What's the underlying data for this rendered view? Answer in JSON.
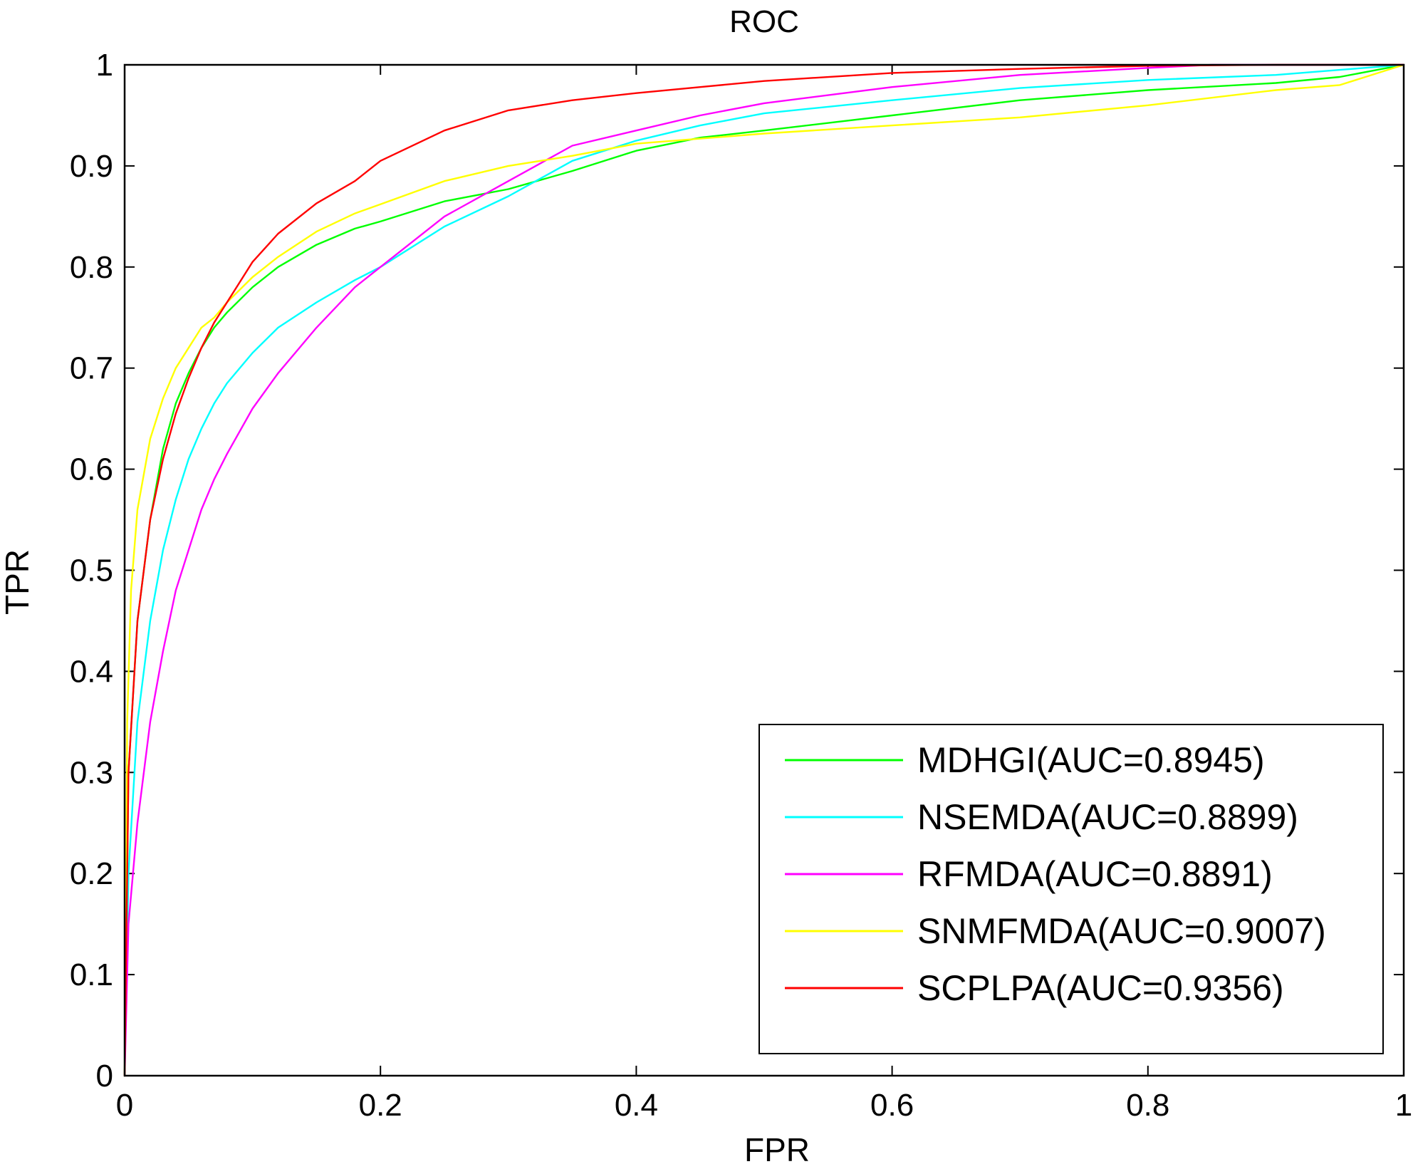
{
  "chart_data": {
    "type": "line",
    "title": "ROC",
    "xlabel": "FPR",
    "ylabel": "TPR",
    "xlim": [
      0,
      1
    ],
    "ylim": [
      0,
      1
    ],
    "xticks": [
      "0",
      "0.2",
      "0.4",
      "0.6",
      "0.8",
      "1"
    ],
    "yticks": [
      "0",
      "0.1",
      "0.2",
      "0.3",
      "0.4",
      "0.5",
      "0.6",
      "0.7",
      "0.8",
      "0.9",
      "1"
    ],
    "grid": false,
    "legend_position": "bottom-right",
    "series": [
      {
        "name": "MDHGI(AUC=0.8945)",
        "color": "#00ff00",
        "x": [
          0,
          0.003,
          0.01,
          0.02,
          0.03,
          0.04,
          0.05,
          0.06,
          0.07,
          0.08,
          0.1,
          0.12,
          0.15,
          0.18,
          0.2,
          0.25,
          0.3,
          0.35,
          0.4,
          0.45,
          0.5,
          0.6,
          0.7,
          0.8,
          0.9,
          0.95,
          1
        ],
        "y": [
          0,
          0.3,
          0.45,
          0.55,
          0.62,
          0.665,
          0.695,
          0.72,
          0.74,
          0.755,
          0.78,
          0.8,
          0.822,
          0.838,
          0.845,
          0.865,
          0.877,
          0.895,
          0.915,
          0.928,
          0.935,
          0.95,
          0.965,
          0.975,
          0.982,
          0.988,
          1
        ]
      },
      {
        "name": "NSEMDA(AUC=0.8899)",
        "color": "#00ffff",
        "x": [
          0,
          0.003,
          0.01,
          0.02,
          0.03,
          0.04,
          0.05,
          0.06,
          0.07,
          0.08,
          0.1,
          0.12,
          0.15,
          0.18,
          0.2,
          0.25,
          0.3,
          0.35,
          0.4,
          0.45,
          0.5,
          0.6,
          0.7,
          0.8,
          0.9,
          0.95,
          1
        ],
        "y": [
          0,
          0.2,
          0.35,
          0.45,
          0.52,
          0.57,
          0.61,
          0.64,
          0.665,
          0.685,
          0.715,
          0.74,
          0.765,
          0.787,
          0.8,
          0.84,
          0.87,
          0.905,
          0.925,
          0.94,
          0.952,
          0.965,
          0.977,
          0.985,
          0.99,
          0.995,
          1
        ]
      },
      {
        "name": "RFMDA(AUC=0.8891)",
        "color": "#ff00ff",
        "x": [
          0,
          0.003,
          0.01,
          0.02,
          0.03,
          0.04,
          0.05,
          0.06,
          0.07,
          0.08,
          0.1,
          0.12,
          0.15,
          0.18,
          0.2,
          0.25,
          0.3,
          0.35,
          0.4,
          0.45,
          0.5,
          0.6,
          0.7,
          0.8,
          0.85,
          0.9,
          1
        ],
        "y": [
          0,
          0.15,
          0.25,
          0.35,
          0.42,
          0.48,
          0.52,
          0.56,
          0.59,
          0.615,
          0.66,
          0.695,
          0.74,
          0.78,
          0.8,
          0.85,
          0.885,
          0.92,
          0.935,
          0.95,
          0.962,
          0.978,
          0.99,
          0.997,
          1.0,
          1.0,
          1
        ]
      },
      {
        "name": "SNMFMDA(AUC=0.9007)",
        "color": "#ffff00",
        "x": [
          0,
          0.002,
          0.005,
          0.01,
          0.02,
          0.03,
          0.04,
          0.05,
          0.06,
          0.07,
          0.08,
          0.1,
          0.12,
          0.15,
          0.18,
          0.2,
          0.25,
          0.3,
          0.35,
          0.4,
          0.5,
          0.6,
          0.7,
          0.8,
          0.9,
          0.95,
          1
        ],
        "y": [
          0,
          0.35,
          0.48,
          0.56,
          0.63,
          0.67,
          0.7,
          0.72,
          0.74,
          0.75,
          0.765,
          0.79,
          0.81,
          0.835,
          0.853,
          0.862,
          0.885,
          0.9,
          0.91,
          0.922,
          0.932,
          0.94,
          0.948,
          0.96,
          0.975,
          0.98,
          1
        ]
      },
      {
        "name": "SCPLPA(AUC=0.9356)",
        "color": "#ff0000",
        "x": [
          0,
          0.003,
          0.01,
          0.02,
          0.03,
          0.04,
          0.05,
          0.06,
          0.07,
          0.08,
          0.1,
          0.12,
          0.15,
          0.18,
          0.2,
          0.25,
          0.3,
          0.35,
          0.4,
          0.45,
          0.5,
          0.6,
          0.7,
          0.8,
          0.9,
          0.95,
          1
        ],
        "y": [
          0,
          0.3,
          0.45,
          0.55,
          0.61,
          0.655,
          0.69,
          0.72,
          0.745,
          0.765,
          0.805,
          0.833,
          0.863,
          0.885,
          0.905,
          0.935,
          0.955,
          0.965,
          0.972,
          0.978,
          0.984,
          0.992,
          0.996,
          0.999,
          1.0,
          1.0,
          1
        ]
      }
    ]
  }
}
